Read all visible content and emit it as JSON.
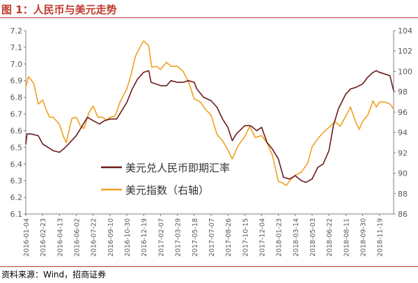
{
  "figure": {
    "title": "图 1：人民币与美元走势",
    "source": "资料来源：Wind，招商证券"
  },
  "colors": {
    "title": "#c0392b",
    "usdcny": "#6b1a1a",
    "dxy": "#f0a01e",
    "axis": "#808080",
    "text": "#595959"
  },
  "chart_data": {
    "type": "line",
    "title": "",
    "xlabel": "",
    "x_ticks": [
      "2016-01-04",
      "2016-02-23",
      "2016-04-13",
      "2016-06-02",
      "2016-07-22",
      "2016-09-10",
      "2016-10-30",
      "2016-12-19",
      "2017-02-07",
      "2017-03-29",
      "2017-05-18",
      "2017-07-07",
      "2017-08-26",
      "2017-10-15",
      "2017-12-04",
      "2018-01-23",
      "2018-03-14",
      "2018-05-03",
      "2018-06-22",
      "2018-08-11",
      "2018-09-30",
      "2018-11-19"
    ],
    "x_range": [
      "2016-01-04",
      "2018-12-31"
    ],
    "y_left": {
      "label": "",
      "range": [
        6.1,
        7.2
      ],
      "ticks": [
        "6.1",
        "6.2",
        "6.3",
        "6.4",
        "6.5",
        "6.6",
        "6.7",
        "6.8",
        "6.9",
        "7.0",
        "7.1",
        "7.2"
      ]
    },
    "y_right": {
      "label": "",
      "range": [
        86,
        104
      ],
      "ticks": [
        "86",
        "88",
        "90",
        "92",
        "94",
        "96",
        "98",
        "100",
        "102",
        "104"
      ]
    },
    "legend_position": "center-left",
    "grid": false,
    "series": [
      {
        "name": "美元兑人民币即期汇率",
        "axis": "left",
        "x": [
          "2016-01-04",
          "2016-01-08",
          "2016-01-20",
          "2016-02-10",
          "2016-02-23",
          "2016-03-10",
          "2016-03-25",
          "2016-04-13",
          "2016-04-25",
          "2016-05-10",
          "2016-06-02",
          "2016-06-20",
          "2016-07-05",
          "2016-07-22",
          "2016-08-10",
          "2016-08-25",
          "2016-09-10",
          "2016-09-30",
          "2016-10-15",
          "2016-10-30",
          "2016-11-15",
          "2016-12-01",
          "2016-12-19",
          "2017-01-03",
          "2017-01-10",
          "2017-01-25",
          "2017-02-07",
          "2017-02-25",
          "2017-03-10",
          "2017-03-29",
          "2017-04-15",
          "2017-05-01",
          "2017-05-18",
          "2017-05-26",
          "2017-06-15",
          "2017-07-07",
          "2017-07-25",
          "2017-08-10",
          "2017-08-26",
          "2017-09-08",
          "2017-09-20",
          "2017-10-15",
          "2017-11-01",
          "2017-11-20",
          "2017-12-04",
          "2017-12-20",
          "2018-01-05",
          "2018-01-23",
          "2018-02-07",
          "2018-02-25",
          "2018-03-14",
          "2018-04-01",
          "2018-04-15",
          "2018-05-03",
          "2018-05-20",
          "2018-06-05",
          "2018-06-22",
          "2018-07-05",
          "2018-07-20",
          "2018-08-11",
          "2018-08-25",
          "2018-09-10",
          "2018-09-30",
          "2018-10-15",
          "2018-10-31",
          "2018-11-10",
          "2018-11-19",
          "2018-12-05",
          "2018-12-20",
          "2018-12-31"
        ],
        "y": [
          6.52,
          6.58,
          6.58,
          6.57,
          6.52,
          6.5,
          6.48,
          6.47,
          6.49,
          6.52,
          6.57,
          6.63,
          6.68,
          6.66,
          6.64,
          6.66,
          6.67,
          6.67,
          6.72,
          6.77,
          6.85,
          6.91,
          6.95,
          6.96,
          6.89,
          6.88,
          6.87,
          6.87,
          6.9,
          6.89,
          6.89,
          6.9,
          6.89,
          6.85,
          6.8,
          6.78,
          6.74,
          6.67,
          6.62,
          6.54,
          6.58,
          6.63,
          6.63,
          6.6,
          6.62,
          6.53,
          6.49,
          6.43,
          6.32,
          6.31,
          6.33,
          6.3,
          6.29,
          6.31,
          6.38,
          6.4,
          6.48,
          6.63,
          6.73,
          6.82,
          6.85,
          6.86,
          6.88,
          6.92,
          6.95,
          6.96,
          6.95,
          6.94,
          6.93,
          6.84
        ]
      },
      {
        "name": "美元指数（右轴）",
        "axis": "right",
        "x": [
          "2016-01-04",
          "2016-01-12",
          "2016-01-28",
          "2016-02-10",
          "2016-02-23",
          "2016-03-05",
          "2016-03-15",
          "2016-03-25",
          "2016-04-13",
          "2016-04-25",
          "2016-05-03",
          "2016-05-20",
          "2016-06-02",
          "2016-06-15",
          "2016-06-25",
          "2016-07-10",
          "2016-07-22",
          "2016-08-05",
          "2016-08-18",
          "2016-09-01",
          "2016-09-10",
          "2016-09-25",
          "2016-10-10",
          "2016-10-30",
          "2016-11-10",
          "2016-11-25",
          "2016-12-10",
          "2016-12-19",
          "2017-01-03",
          "2017-01-12",
          "2017-01-25",
          "2017-02-07",
          "2017-02-25",
          "2017-03-10",
          "2017-03-29",
          "2017-04-15",
          "2017-05-01",
          "2017-05-18",
          "2017-06-05",
          "2017-06-20",
          "2017-07-07",
          "2017-07-25",
          "2017-08-10",
          "2017-08-26",
          "2017-09-08",
          "2017-09-25",
          "2017-10-15",
          "2017-10-30",
          "2017-11-15",
          "2017-12-04",
          "2017-12-20",
          "2018-01-05",
          "2018-01-23",
          "2018-02-01",
          "2018-02-15",
          "2018-03-01",
          "2018-03-14",
          "2018-04-01",
          "2018-04-20",
          "2018-05-03",
          "2018-05-20",
          "2018-06-05",
          "2018-06-22",
          "2018-07-10",
          "2018-07-25",
          "2018-08-11",
          "2018-08-25",
          "2018-09-10",
          "2018-09-20",
          "2018-09-30",
          "2018-10-15",
          "2018-10-31",
          "2018-11-10",
          "2018-11-19",
          "2018-12-05",
          "2018-12-20",
          "2018-12-31"
        ],
        "y": [
          98.5,
          99.5,
          98.8,
          96.8,
          97.2,
          96.2,
          95.5,
          95.5,
          94.8,
          93.6,
          93.0,
          95.4,
          95.5,
          94.6,
          94.4,
          96.0,
          96.6,
          95.5,
          95.5,
          95.2,
          95.5,
          95.6,
          97.0,
          98.3,
          99.5,
          101.5,
          102.5,
          103.0,
          102.5,
          100.4,
          100.5,
          100.2,
          100.9,
          100.5,
          100.5,
          100.0,
          99.0,
          97.3,
          97.0,
          96.3,
          95.7,
          93.8,
          93.2,
          92.3,
          91.4,
          92.7,
          93.6,
          94.6,
          93.5,
          93.7,
          93.0,
          91.8,
          89.2,
          89.1,
          88.8,
          89.4,
          89.8,
          90.1,
          91.0,
          92.6,
          93.4,
          94.0,
          94.5,
          95.1,
          94.6,
          95.6,
          96.5,
          95.0,
          94.3,
          95.1,
          95.7,
          97.1,
          96.5,
          97.0,
          97.0,
          96.8,
          96.3
        ]
      }
    ]
  }
}
